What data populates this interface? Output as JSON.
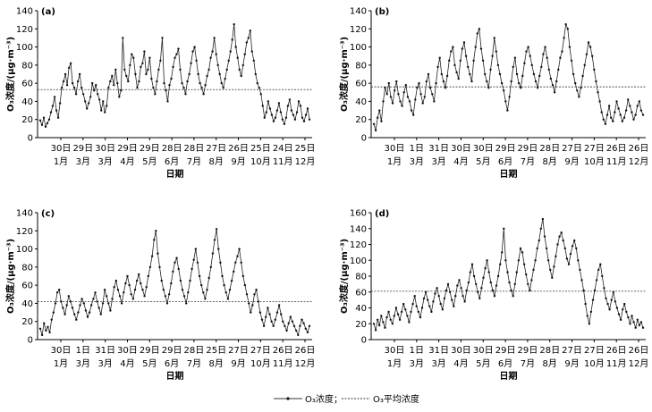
{
  "chart_data": [
    {
      "type": "line",
      "panel_label": "(a)",
      "ylabel": "O₃浓度/(μg·m⁻³)",
      "xlabel": "日期",
      "ylim": [
        0,
        140
      ],
      "yticks": [
        0,
        20,
        40,
        60,
        80,
        100,
        120,
        140
      ],
      "x_ticks": [
        {
          "day": "30日",
          "month": "1月"
        },
        {
          "day": "29日",
          "month": "3月"
        },
        {
          "day": "30日",
          "month": "3月"
        },
        {
          "day": "29日",
          "month": "4月"
        },
        {
          "day": "29日",
          "month": "5月"
        },
        {
          "day": "28日",
          "month": "6月"
        },
        {
          "day": "28日",
          "month": "7月"
        },
        {
          "day": "27日",
          "month": "8月"
        },
        {
          "day": "26日",
          "month": "9月"
        },
        {
          "day": "25日",
          "month": "10月"
        },
        {
          "day": "24日",
          "month": "11月"
        },
        {
          "day": "25日",
          "month": "12月"
        }
      ],
      "mean": 53,
      "series": [
        {
          "values": [
            19,
            14,
            22,
            12,
            16,
            20,
            28,
            35,
            45,
            30,
            22,
            38,
            55,
            62,
            70,
            58,
            77,
            82,
            60,
            55,
            48,
            62,
            70,
            55,
            48,
            40,
            32,
            38,
            45,
            60,
            52,
            58,
            48,
            42,
            30,
            40,
            28,
            35,
            55,
            62,
            68,
            58,
            75,
            60,
            45,
            52,
            110,
            75,
            68,
            62,
            80,
            92,
            88,
            70,
            55,
            62,
            78,
            82,
            95,
            70,
            75,
            88,
            65,
            55,
            48,
            62,
            75,
            85,
            110,
            60,
            52,
            40,
            58,
            65,
            78,
            88,
            92,
            98,
            75,
            60,
            55,
            48,
            62,
            70,
            82,
            95,
            100,
            85,
            70,
            60,
            55,
            48,
            58,
            68,
            75,
            88,
            95,
            110,
            92,
            80,
            70,
            60,
            55,
            65,
            75,
            85,
            95,
            108,
            125,
            100,
            88,
            75,
            68,
            80,
            92,
            105,
            110,
            118,
            95,
            85,
            70,
            60,
            55,
            48,
            35,
            22,
            28,
            40,
            32,
            25,
            18,
            22,
            30,
            38,
            28,
            20,
            15,
            22,
            35,
            42,
            30,
            25,
            20,
            28,
            40,
            35,
            22,
            18,
            25,
            32,
            20
          ]
        }
      ]
    },
    {
      "type": "line",
      "panel_label": "(b)",
      "ylabel": "O₃浓度/(μg·m⁻³)",
      "xlabel": "日期",
      "ylim": [
        0,
        140
      ],
      "yticks": [
        0,
        20,
        40,
        60,
        80,
        100,
        120,
        140
      ],
      "x_ticks": [
        {
          "day": "30日",
          "month": "1月"
        },
        {
          "day": "1日",
          "month": "3月"
        },
        {
          "day": "31日",
          "month": "3月"
        },
        {
          "day": "30日",
          "month": "4月"
        },
        {
          "day": "30日",
          "month": "5月"
        },
        {
          "day": "29日",
          "month": "6月"
        },
        {
          "day": "29日",
          "month": "7月"
        },
        {
          "day": "28日",
          "month": "8月"
        },
        {
          "day": "27日",
          "month": "9月"
        },
        {
          "day": "27日",
          "month": "10月"
        },
        {
          "day": "26日",
          "month": "11月"
        },
        {
          "day": "26日",
          "month": "12月"
        }
      ],
      "mean": 56,
      "series": [
        {
          "values": [
            15,
            8,
            22,
            30,
            18,
            40,
            55,
            48,
            60,
            45,
            38,
            52,
            62,
            48,
            40,
            35,
            50,
            58,
            45,
            40,
            30,
            25,
            42,
            55,
            60,
            48,
            38,
            45,
            62,
            70,
            55,
            48,
            40,
            60,
            78,
            88,
            70,
            62,
            55,
            68,
            85,
            95,
            100,
            80,
            72,
            65,
            85,
            98,
            105,
            90,
            78,
            70,
            62,
            85,
            100,
            115,
            120,
            98,
            85,
            70,
            62,
            55,
            75,
            90,
            110,
            95,
            80,
            70,
            60,
            52,
            40,
            30,
            45,
            62,
            78,
            88,
            70,
            60,
            55,
            68,
            82,
            95,
            100,
            90,
            80,
            70,
            62,
            55,
            68,
            78,
            92,
            100,
            88,
            75,
            65,
            58,
            50,
            62,
            75,
            88,
            95,
            110,
            125,
            120,
            100,
            85,
            70,
            60,
            52,
            45,
            55,
            68,
            80,
            92,
            105,
            100,
            90,
            75,
            62,
            50,
            40,
            28,
            20,
            15,
            25,
            35,
            22,
            18,
            28,
            40,
            32,
            25,
            18,
            22,
            30,
            42,
            35,
            28,
            20,
            25,
            35,
            40,
            30,
            25
          ]
        }
      ]
    },
    {
      "type": "line",
      "panel_label": "(c)",
      "ylabel": "O₃浓度/(μg·m⁻³)",
      "xlabel": "日期",
      "ylim": [
        0,
        140
      ],
      "yticks": [
        0,
        20,
        40,
        60,
        80,
        100,
        120,
        140
      ],
      "x_ticks": [
        {
          "day": "30日",
          "month": "1月"
        },
        {
          "day": "1日",
          "month": "3月"
        },
        {
          "day": "31日",
          "month": "3月"
        },
        {
          "day": "30日",
          "month": "4月"
        },
        {
          "day": "29日",
          "month": "5月"
        },
        {
          "day": "29日",
          "month": "6月"
        },
        {
          "day": "28日",
          "month": "7月"
        },
        {
          "day": "25日",
          "month": "8月"
        },
        {
          "day": "27日",
          "month": "9月"
        },
        {
          "day": "27日",
          "month": "10月"
        },
        {
          "day": "26日",
          "month": "11月"
        },
        {
          "day": "26日",
          "month": "12月"
        }
      ],
      "mean": 42,
      "series": [
        {
          "values": [
            12,
            5,
            18,
            10,
            14,
            8,
            22,
            30,
            40,
            52,
            55,
            42,
            35,
            28,
            38,
            48,
            42,
            35,
            28,
            22,
            30,
            38,
            45,
            40,
            32,
            25,
            30,
            38,
            45,
            52,
            42,
            35,
            28,
            40,
            55,
            48,
            40,
            32,
            45,
            58,
            65,
            55,
            48,
            40,
            52,
            62,
            70,
            60,
            50,
            45,
            55,
            65,
            72,
            62,
            55,
            48,
            58,
            70,
            80,
            92,
            110,
            120,
            95,
            80,
            65,
            55,
            48,
            40,
            50,
            62,
            75,
            85,
            90,
            78,
            65,
            55,
            48,
            40,
            52,
            65,
            78,
            88,
            100,
            85,
            70,
            60,
            52,
            45,
            55,
            68,
            80,
            95,
            110,
            122,
            100,
            85,
            70,
            60,
            52,
            45,
            55,
            65,
            75,
            85,
            92,
            100,
            85,
            70,
            60,
            50,
            40,
            30,
            38,
            50,
            55,
            42,
            30,
            22,
            15,
            25,
            35,
            28,
            20,
            15,
            22,
            30,
            38,
            28,
            20,
            15,
            10,
            18,
            25,
            20,
            15,
            10,
            5,
            15,
            22,
            18,
            12,
            8,
            15
          ]
        }
      ]
    },
    {
      "type": "line",
      "panel_label": "(d)",
      "ylabel": "O₃浓度/(μg·m⁻³)",
      "xlabel": "日期",
      "ylim": [
        0,
        160
      ],
      "yticks": [
        0,
        20,
        40,
        60,
        80,
        100,
        120,
        140,
        160
      ],
      "x_ticks": [
        {
          "day": "30日",
          "month": "1月"
        },
        {
          "day": "1日",
          "month": "3月"
        },
        {
          "day": "31日",
          "month": "3月"
        },
        {
          "day": "30日",
          "month": "4月"
        },
        {
          "day": "30日",
          "month": "5月"
        },
        {
          "day": "29日",
          "month": "6月"
        },
        {
          "day": "29日",
          "month": "7月"
        },
        {
          "day": "28日",
          "month": "8月"
        },
        {
          "day": "27日",
          "month": "9月"
        },
        {
          "day": "27日",
          "month": "10月"
        },
        {
          "day": "26日",
          "month": "11月"
        },
        {
          "day": "26日",
          "month": "12月"
        }
      ],
      "mean": 61,
      "series": [
        {
          "values": [
            20,
            12,
            25,
            18,
            30,
            22,
            15,
            28,
            35,
            25,
            20,
            30,
            40,
            32,
            25,
            35,
            45,
            38,
            30,
            22,
            35,
            45,
            55,
            42,
            35,
            28,
            40,
            52,
            60,
            50,
            42,
            35,
            48,
            58,
            65,
            55,
            45,
            38,
            52,
            62,
            70,
            60,
            50,
            42,
            55,
            68,
            75,
            65,
            55,
            48,
            62,
            72,
            85,
            95,
            80,
            70,
            60,
            52,
            65,
            78,
            90,
            100,
            85,
            72,
            62,
            55,
            68,
            80,
            95,
            110,
            140,
            100,
            85,
            72,
            62,
            55,
            70,
            85,
            100,
            115,
            110,
            95,
            82,
            70,
            62,
            75,
            88,
            100,
            115,
            125,
            140,
            152,
            130,
            115,
            100,
            88,
            78,
            92,
            105,
            120,
            130,
            135,
            125,
            115,
            102,
            95,
            108,
            118,
            125,
            115,
            100,
            88,
            75,
            62,
            45,
            30,
            20,
            35,
            50,
            62,
            75,
            88,
            95,
            80,
            65,
            52,
            45,
            38,
            50,
            60,
            48,
            40,
            32,
            25,
            38,
            45,
            35,
            28,
            20,
            30,
            22,
            15,
            25,
            18,
            22,
            15
          ]
        }
      ]
    }
  ],
  "legend": {
    "series_label": "O₃浓度；",
    "mean_label": "O₃平均浓度"
  }
}
